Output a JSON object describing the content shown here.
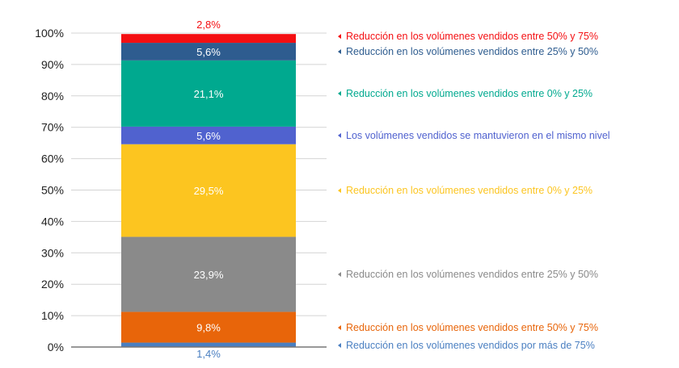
{
  "chart_data": {
    "type": "bar",
    "stacked": true,
    "categories": [
      ""
    ],
    "ylim": [
      0,
      100
    ],
    "y_ticks": [
      "0%",
      "10%",
      "20%",
      "30%",
      "40%",
      "50%",
      "60%",
      "70%",
      "80%",
      "90%",
      "100%"
    ],
    "grid": true,
    "legend_placement": "right",
    "series": [
      {
        "name": "Reducción en los volúmenes vendidos por más de 75%",
        "value": 1.4,
        "label": "1,4%",
        "color": "#4a7fc1",
        "label_color": "#4a7fc1",
        "label_position": "below"
      },
      {
        "name": "Reducción en los volúmenes vendidos entre 50% y 75%",
        "value": 9.8,
        "label": "9,8%",
        "color": "#e8650a",
        "label_color": "#ffffff",
        "label_position": "inside"
      },
      {
        "name": "Reducción en los volúmenes vendidos entre 25% y 50%",
        "value": 23.9,
        "label": "23,9%",
        "color": "#8a8a8a",
        "label_color": "#ffffff",
        "label_position": "inside"
      },
      {
        "name": "Reducción en los volúmenes vendidos entre 0% y 25%",
        "value": 29.5,
        "label": "29,5%",
        "color": "#fcc520",
        "label_color": "#ffffff",
        "label_position": "inside"
      },
      {
        "name": "Los volúmenes vendidos se mantuvieron en el mismo nivel",
        "value": 5.6,
        "label": "5,6%",
        "color": "#5062cf",
        "label_color": "#ffffff",
        "label_position": "inside"
      },
      {
        "name": "Reducción en los volúmenes vendidos entre 0% y 25%",
        "value": 21.1,
        "label": "21,1%",
        "color": "#00a98f",
        "label_color": "#ffffff",
        "label_position": "inside"
      },
      {
        "name": "Reducción en los volúmenes vendidos entre 25% y 50%",
        "value": 5.6,
        "label": "5,6%",
        "color": "#2e5c8f",
        "label_color": "#ffffff",
        "label_position": "inside"
      },
      {
        "name": "Reducción en los volúmenes vendidos entre 50% y 75%",
        "value": 2.8,
        "label": "2,8%",
        "color": "#f40f12",
        "label_color": "#f40f12",
        "label_position": "above"
      }
    ]
  }
}
